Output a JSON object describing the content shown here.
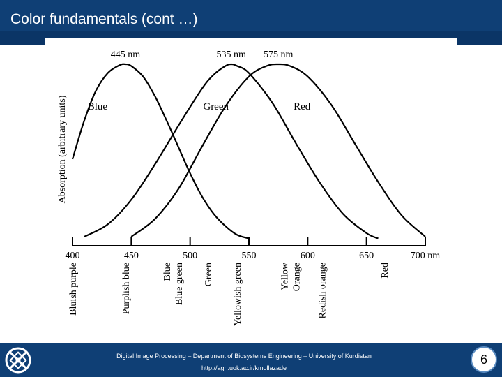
{
  "slide": {
    "title": "Color fundamentals (cont …)",
    "footer_line1": "Digital Image Processing – Department of Biosystems Engineering – University of Kurdistan",
    "footer_line2": "http://agri.uok.ac.ir/kmollazade",
    "page_number": "6"
  },
  "colors": {
    "header_bg": "#0f3f75",
    "footer_bg": "#0f3f75",
    "page_badge_border": "#5a8cc2"
  },
  "icons": {
    "logo": "university-logo-icon"
  },
  "chart_data": {
    "type": "line",
    "ylabel": "Absorption (arbitrary units)",
    "xlim": [
      400,
      700
    ],
    "x_ticks": [
      "400",
      "450",
      "500",
      "550",
      "600",
      "650",
      "700 nm"
    ],
    "x_tick_values": [
      400,
      450,
      500,
      550,
      600,
      650,
      700
    ],
    "grid": false,
    "series": [
      {
        "name": "Blue",
        "peak_label": "445 nm",
        "x": [
          400,
          410,
          420,
          430,
          440,
          445,
          450,
          460,
          470,
          480,
          490,
          500,
          510,
          520,
          530,
          540,
          550
        ],
        "y": [
          0.46,
          0.68,
          0.85,
          0.95,
          0.995,
          1.0,
          0.99,
          0.93,
          0.82,
          0.68,
          0.53,
          0.38,
          0.25,
          0.15,
          0.08,
          0.03,
          0.01
        ]
      },
      {
        "name": "Green",
        "peak_label": "535 nm",
        "x": [
          410,
          430,
          450,
          470,
          490,
          510,
          520,
          530,
          535,
          540,
          550,
          570,
          590,
          610,
          630,
          650,
          660
        ],
        "y": [
          0.02,
          0.09,
          0.23,
          0.43,
          0.65,
          0.86,
          0.94,
          0.99,
          1.0,
          0.99,
          0.95,
          0.78,
          0.55,
          0.33,
          0.15,
          0.04,
          0.01
        ]
      },
      {
        "name": "Red",
        "peak_label": "575 nm",
        "x": [
          450,
          470,
          490,
          510,
          530,
          550,
          565,
          575,
          585,
          600,
          620,
          640,
          660,
          680,
          700
        ],
        "y": [
          0.02,
          0.12,
          0.29,
          0.53,
          0.76,
          0.93,
          0.99,
          1.0,
          0.99,
          0.93,
          0.77,
          0.55,
          0.33,
          0.14,
          0.02
        ]
      }
    ],
    "color_band_labels": [
      {
        "label": "Bluish purple",
        "x": 400
      },
      {
        "label": "Purplish blue",
        "x": 445
      },
      {
        "label": "Blue",
        "x": 480
      },
      {
        "label": "Blue green",
        "x": 490
      },
      {
        "label": "Green",
        "x": 515
      },
      {
        "label": "Yellowish green",
        "x": 540
      },
      {
        "label": "Yellow",
        "x": 580
      },
      {
        "label": "Orange",
        "x": 590
      },
      {
        "label": "Redish orange",
        "x": 612
      },
      {
        "label": "Red",
        "x": 665
      }
    ]
  }
}
